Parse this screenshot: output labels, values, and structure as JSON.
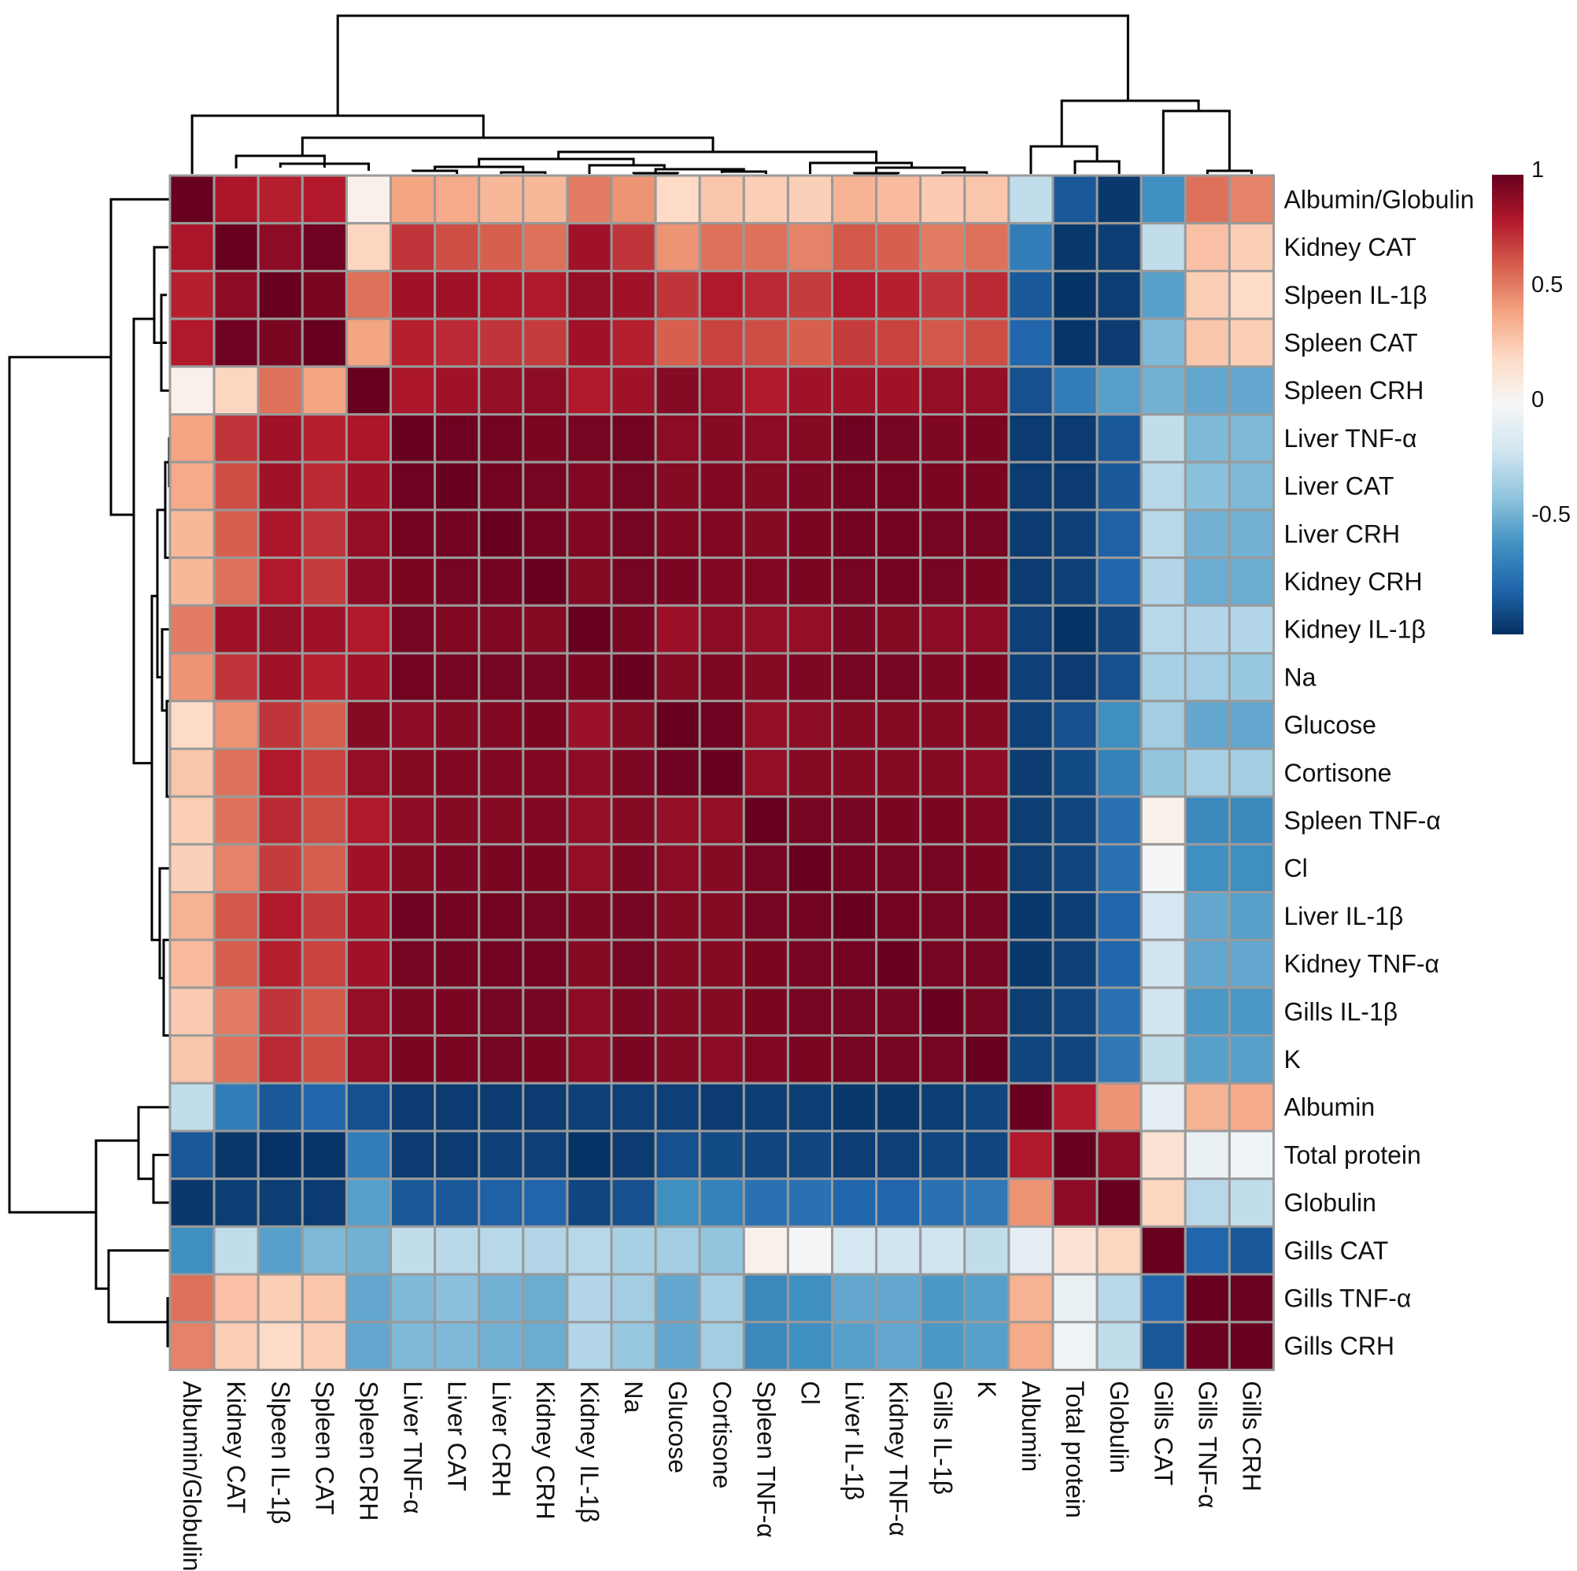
{
  "chart_data": {
    "type": "heatmap",
    "title": "",
    "labels": [
      "Albumin/Globulin",
      "Kidney CAT",
      "Slpeen IL-1β",
      "Spleen CAT",
      "Spleen CRH",
      "Liver TNF-α",
      "Liver CAT",
      "Liver CRH",
      "Kidney CRH",
      "Kidney IL-1β",
      "Na",
      "Glucose",
      "Cortisone",
      "Spleen TNF-α",
      "Cl",
      "Liver IL-1β",
      "Kidney TNF-α",
      "Gills IL-1β",
      "K",
      "Albumin",
      "Total protein",
      "Globulin",
      "Gills CAT",
      "Gills TNF-α",
      "Gills CRH"
    ],
    "col_labels": [
      "Albumin/Globulin",
      "Kidney CAT",
      "Slpeen IL-1β",
      "Spleen CAT",
      "Spleen CRH",
      "Liver TNF-α",
      "Liver CAT",
      "Liver CRH",
      "Kidney CRH",
      "Kidney IL-1β",
      "Na",
      "Glucose",
      "Cortisone",
      "Spleen TNF-α",
      "Cl",
      "Liver IL-1β",
      "Kidney TNF-α",
      "Gills IL-1β",
      "K",
      "Albumin",
      "Total protein",
      "Globulin",
      "Gills CAT",
      "Gills TNF-α",
      "Gills CRH"
    ],
    "matrix": [
      [
        1.0,
        0.82,
        0.78,
        0.8,
        0.05,
        0.4,
        0.38,
        0.33,
        0.33,
        0.52,
        0.45,
        0.2,
        0.28,
        0.25,
        0.24,
        0.35,
        0.32,
        0.26,
        0.28,
        -0.25,
        -0.85,
        -0.97,
        -0.62,
        0.55,
        0.5
      ],
      [
        0.82,
        1.0,
        0.9,
        0.98,
        0.22,
        0.72,
        0.65,
        0.6,
        0.55,
        0.85,
        0.72,
        0.45,
        0.55,
        0.55,
        0.5,
        0.62,
        0.6,
        0.52,
        0.55,
        -0.7,
        -0.97,
        -0.95,
        -0.25,
        0.3,
        0.25
      ],
      [
        0.78,
        0.9,
        1.0,
        0.95,
        0.55,
        0.85,
        0.85,
        0.82,
        0.8,
        0.88,
        0.85,
        0.72,
        0.8,
        0.75,
        0.7,
        0.8,
        0.78,
        0.72,
        0.75,
        -0.85,
        -0.99,
        -0.95,
        -0.55,
        0.25,
        0.2
      ],
      [
        0.8,
        0.98,
        0.95,
        1.0,
        0.4,
        0.78,
        0.75,
        0.72,
        0.7,
        0.85,
        0.78,
        0.6,
        0.68,
        0.65,
        0.6,
        0.7,
        0.68,
        0.62,
        0.65,
        -0.8,
        -0.98,
        -0.96,
        -0.45,
        0.28,
        0.25
      ],
      [
        0.05,
        0.22,
        0.55,
        0.4,
        1.0,
        0.82,
        0.85,
        0.88,
        0.9,
        0.8,
        0.85,
        0.92,
        0.88,
        0.8,
        0.85,
        0.85,
        0.85,
        0.88,
        0.88,
        -0.88,
        -0.7,
        -0.55,
        -0.48,
        -0.52,
        -0.52
      ],
      [
        0.4,
        0.72,
        0.85,
        0.78,
        0.82,
        1.0,
        0.98,
        0.97,
        0.95,
        0.96,
        0.97,
        0.9,
        0.92,
        0.9,
        0.92,
        0.98,
        0.96,
        0.94,
        0.95,
        -0.96,
        -0.96,
        -0.85,
        -0.25,
        -0.45,
        -0.45
      ],
      [
        0.38,
        0.65,
        0.85,
        0.75,
        0.85,
        0.98,
        1.0,
        0.97,
        0.96,
        0.93,
        0.96,
        0.92,
        0.93,
        0.92,
        0.94,
        0.97,
        0.97,
        0.95,
        0.95,
        -0.96,
        -0.96,
        -0.85,
        -0.28,
        -0.42,
        -0.45
      ],
      [
        0.33,
        0.6,
        0.82,
        0.72,
        0.88,
        0.97,
        0.97,
        1.0,
        0.97,
        0.93,
        0.96,
        0.93,
        0.93,
        0.92,
        0.95,
        0.97,
        0.97,
        0.96,
        0.96,
        -0.96,
        -0.94,
        -0.82,
        -0.28,
        -0.48,
        -0.48
      ],
      [
        0.33,
        0.55,
        0.8,
        0.7,
        0.9,
        0.95,
        0.96,
        0.97,
        1.0,
        0.92,
        0.96,
        0.95,
        0.93,
        0.93,
        0.95,
        0.96,
        0.97,
        0.96,
        0.95,
        -0.96,
        -0.94,
        -0.8,
        -0.3,
        -0.5,
        -0.5
      ],
      [
        0.52,
        0.85,
        0.88,
        0.85,
        0.8,
        0.96,
        0.93,
        0.93,
        0.92,
        1.0,
        0.95,
        0.86,
        0.9,
        0.88,
        0.88,
        0.94,
        0.92,
        0.9,
        0.9,
        -0.94,
        -0.99,
        -0.92,
        -0.28,
        -0.3,
        -0.3
      ],
      [
        0.45,
        0.72,
        0.85,
        0.78,
        0.85,
        0.97,
        0.96,
        0.96,
        0.96,
        0.95,
        1.0,
        0.92,
        0.94,
        0.92,
        0.94,
        0.96,
        0.96,
        0.94,
        0.95,
        -0.94,
        -0.96,
        -0.88,
        -0.33,
        -0.35,
        -0.38
      ],
      [
        0.2,
        0.45,
        0.72,
        0.6,
        0.92,
        0.9,
        0.92,
        0.93,
        0.95,
        0.86,
        0.92,
        1.0,
        0.98,
        0.88,
        0.9,
        0.92,
        0.92,
        0.92,
        0.92,
        -0.94,
        -0.88,
        -0.62,
        -0.35,
        -0.52,
        -0.52
      ],
      [
        0.28,
        0.55,
        0.8,
        0.68,
        0.88,
        0.92,
        0.93,
        0.93,
        0.93,
        0.9,
        0.94,
        0.98,
        1.0,
        0.88,
        0.92,
        0.92,
        0.92,
        0.92,
        0.9,
        -0.96,
        -0.9,
        -0.68,
        -0.4,
        -0.33,
        -0.35
      ],
      [
        0.25,
        0.55,
        0.75,
        0.65,
        0.8,
        0.9,
        0.92,
        0.92,
        0.93,
        0.88,
        0.92,
        0.88,
        0.88,
        1.0,
        0.96,
        0.96,
        0.95,
        0.95,
        0.93,
        -0.95,
        -0.92,
        -0.75,
        0.05,
        -0.65,
        -0.65
      ],
      [
        0.24,
        0.5,
        0.7,
        0.6,
        0.85,
        0.92,
        0.94,
        0.95,
        0.95,
        0.88,
        0.94,
        0.9,
        0.92,
        0.96,
        1.0,
        0.97,
        0.96,
        0.96,
        0.95,
        -0.95,
        -0.92,
        -0.75,
        -0.02,
        -0.62,
        -0.62
      ],
      [
        0.35,
        0.62,
        0.8,
        0.7,
        0.85,
        0.98,
        0.97,
        0.97,
        0.96,
        0.94,
        0.96,
        0.92,
        0.92,
        0.96,
        0.97,
        1.0,
        0.97,
        0.96,
        0.96,
        -0.97,
        -0.95,
        -0.8,
        -0.18,
        -0.52,
        -0.55
      ],
      [
        0.32,
        0.6,
        0.78,
        0.68,
        0.85,
        0.96,
        0.97,
        0.97,
        0.97,
        0.92,
        0.96,
        0.92,
        0.92,
        0.95,
        0.96,
        0.97,
        1.0,
        0.96,
        0.96,
        -0.97,
        -0.94,
        -0.8,
        -0.2,
        -0.52,
        -0.52
      ],
      [
        0.26,
        0.52,
        0.72,
        0.62,
        0.88,
        0.94,
        0.95,
        0.96,
        0.96,
        0.9,
        0.94,
        0.92,
        0.92,
        0.95,
        0.96,
        0.96,
        0.96,
        1.0,
        0.96,
        -0.95,
        -0.92,
        -0.75,
        -0.2,
        -0.58,
        -0.58
      ],
      [
        0.28,
        0.55,
        0.75,
        0.65,
        0.88,
        0.95,
        0.95,
        0.96,
        0.95,
        0.9,
        0.95,
        0.92,
        0.9,
        0.93,
        0.95,
        0.96,
        0.96,
        0.96,
        1.0,
        -0.92,
        -0.92,
        -0.72,
        -0.25,
        -0.55,
        -0.55
      ],
      [
        -0.25,
        -0.7,
        -0.85,
        -0.8,
        -0.88,
        -0.96,
        -0.96,
        -0.96,
        -0.96,
        -0.94,
        -0.94,
        -0.94,
        -0.96,
        -0.95,
        -0.95,
        -0.97,
        -0.97,
        -0.95,
        -0.92,
        1.0,
        0.8,
        0.45,
        -0.1,
        0.35,
        0.38
      ],
      [
        -0.85,
        -0.97,
        -0.99,
        -0.98,
        -0.7,
        -0.96,
        -0.96,
        -0.94,
        -0.94,
        -0.99,
        -0.96,
        -0.88,
        -0.9,
        -0.92,
        -0.92,
        -0.95,
        -0.94,
        -0.92,
        -0.92,
        0.8,
        1.0,
        0.9,
        0.15,
        -0.08,
        -0.05
      ],
      [
        -0.97,
        -0.95,
        -0.95,
        -0.96,
        -0.55,
        -0.85,
        -0.85,
        -0.82,
        -0.8,
        -0.92,
        -0.88,
        -0.62,
        -0.68,
        -0.75,
        -0.75,
        -0.8,
        -0.8,
        -0.75,
        -0.72,
        0.45,
        0.9,
        1.0,
        0.22,
        -0.28,
        -0.25
      ],
      [
        -0.62,
        -0.25,
        -0.55,
        -0.45,
        -0.48,
        -0.25,
        -0.28,
        -0.28,
        -0.3,
        -0.28,
        -0.33,
        -0.35,
        -0.4,
        0.05,
        -0.02,
        -0.18,
        -0.2,
        -0.2,
        -0.25,
        -0.1,
        0.15,
        0.22,
        1.0,
        -0.8,
        -0.85
      ],
      [
        0.55,
        0.3,
        0.25,
        0.28,
        -0.52,
        -0.45,
        -0.42,
        -0.48,
        -0.5,
        -0.3,
        -0.35,
        -0.52,
        -0.33,
        -0.65,
        -0.62,
        -0.52,
        -0.52,
        -0.58,
        -0.55,
        0.35,
        -0.08,
        -0.28,
        -0.8,
        1.0,
        0.99
      ],
      [
        0.5,
        0.25,
        0.2,
        0.25,
        -0.52,
        -0.45,
        -0.45,
        -0.48,
        -0.5,
        -0.3,
        -0.38,
        -0.52,
        -0.35,
        -0.65,
        -0.62,
        -0.55,
        -0.52,
        -0.58,
        -0.55,
        0.38,
        -0.05,
        -0.25,
        -0.85,
        0.99,
        1.0
      ]
    ],
    "color_scale": {
      "min": -1,
      "max": 1,
      "ticks": [
        {
          "value": 1,
          "label": "1"
        },
        {
          "value": 0.5,
          "label": "0.5"
        },
        {
          "value": 0,
          "label": "0"
        },
        {
          "value": -0.5,
          "label": "-0.5"
        }
      ],
      "stops": [
        "#053061",
        "#2166ac",
        "#4393c3",
        "#92c5de",
        "#d1e5f0",
        "#f7f7f7",
        "#fddbc7",
        "#f4a582",
        "#d6604d",
        "#b2182b",
        "#67001f"
      ]
    },
    "cell_border_color": "#9a9a9a",
    "row_dendrogram": true,
    "col_dendrogram": true,
    "legend_placement": "right"
  }
}
